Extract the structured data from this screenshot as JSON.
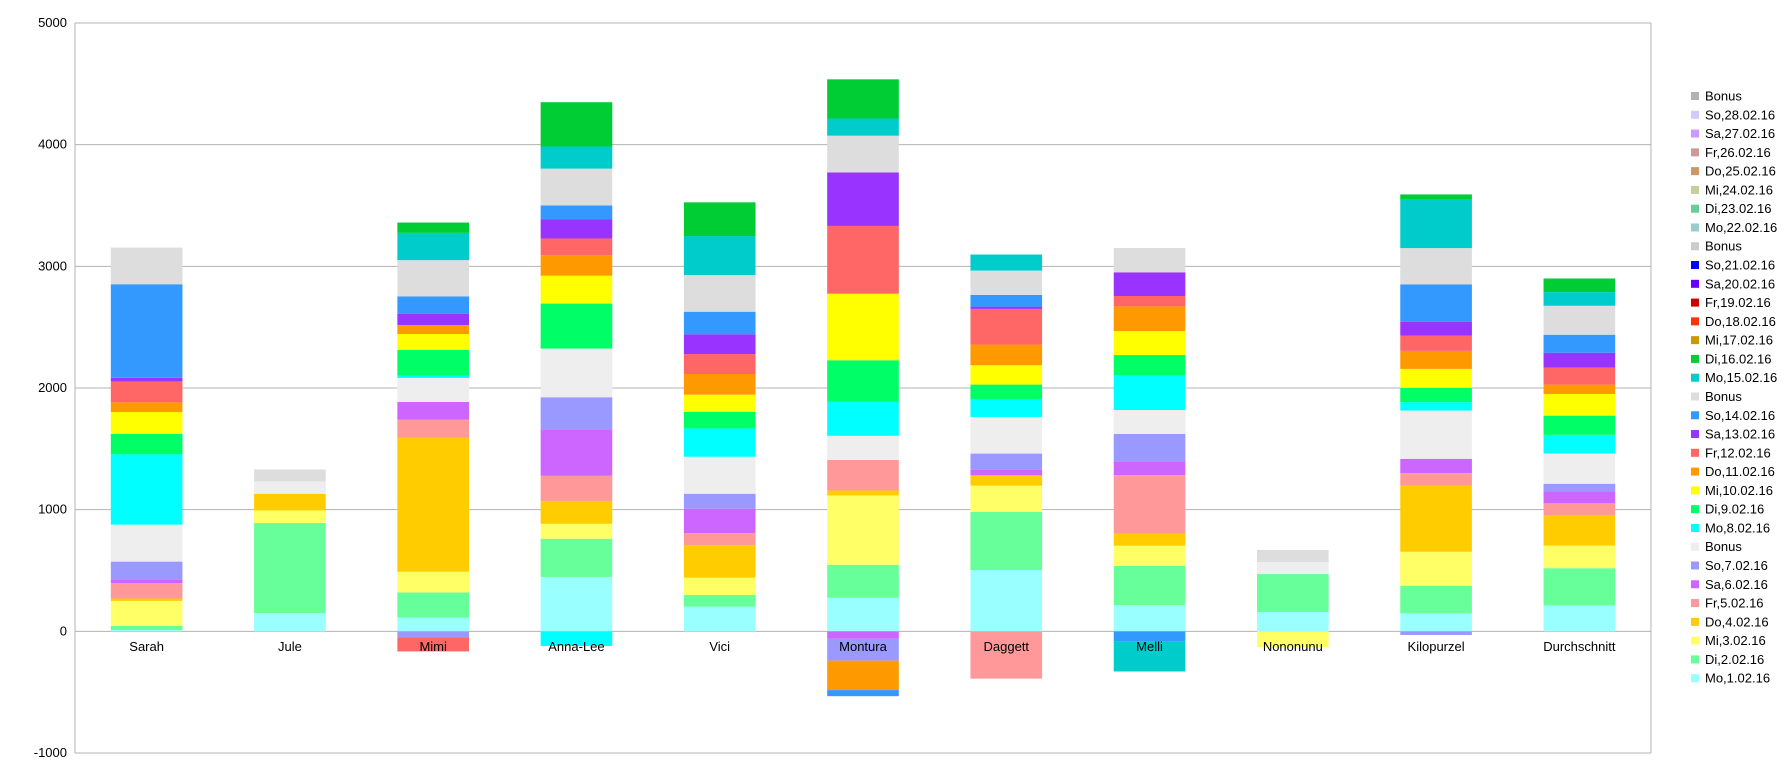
{
  "chart_data": {
    "type": "bar",
    "stacked": true,
    "title": "",
    "xlabel": "",
    "ylabel": "",
    "ylim": [
      -1000,
      5000
    ],
    "yticks": [
      -1000,
      0,
      1000,
      2000,
      3000,
      4000,
      5000
    ],
    "grid": true,
    "legend_position": "right",
    "categories": [
      "Sarah",
      "Jule",
      "Mimi",
      "Anna-Lee",
      "Vici",
      "Montura",
      "Daggett",
      "Melli",
      "Nononunu",
      "Kilopurzel",
      "Durchschnitt"
    ],
    "series": [
      {
        "name": "Mo,1.02.16",
        "color": "#99ffff",
        "values": [
          10,
          150,
          112,
          447,
          203,
          275,
          504,
          216,
          159,
          148,
          213
        ]
      },
      {
        "name": "Di,2.02.16",
        "color": "#66ff99",
        "values": [
          35,
          740,
          208,
          314,
          96,
          272,
          477,
          321,
          312,
          227,
          306
        ]
      },
      {
        "name": "Mi,3.02.16",
        "color": "#ffff66",
        "values": [
          205,
          104,
          170,
          123,
          142,
          570,
          216,
          167,
          -131,
          279,
          186
        ]
      },
      {
        "name": "Do,4.02.16",
        "color": "#ffcc00",
        "values": [
          20,
          137,
          1103,
          185,
          268,
          40,
          85,
          99,
          0,
          545,
          246
        ]
      },
      {
        "name": "Fr,5.02.16",
        "color": "#ff9999",
        "values": [
          125,
          0,
          148,
          209,
          99,
          252,
          -389,
          482,
          0,
          101,
          101
        ]
      },
      {
        "name": "Sa,6.02.16",
        "color": "#cc66ff",
        "values": [
          33,
          0,
          145,
          382,
          200,
          -60,
          47,
          112,
          0,
          118,
          98
        ]
      },
      {
        "name": "So,7.02.16",
        "color": "#9999ff",
        "values": [
          145,
          0,
          -50,
          264,
          123,
          -181,
          132,
          225,
          0,
          -30,
          63
        ]
      },
      {
        "name": "Bonus",
        "color": "#eeeeee",
        "values": [
          304,
          101,
          197,
          400,
          304,
          198,
          301,
          197,
          99,
          397,
          249
        ]
      },
      {
        "name": "Mo,8.02.16",
        "color": "#00ffff",
        "values": [
          578,
          0,
          19,
          -120,
          233,
          282,
          148,
          288,
          0,
          68,
          153
        ]
      },
      {
        "name": "Di,9.02.16",
        "color": "#00ff66",
        "values": [
          167,
          0,
          211,
          370,
          137,
          339,
          118,
          164,
          0,
          118,
          158
        ]
      },
      {
        "name": "Mi,10.02.16",
        "color": "#ffff00",
        "values": [
          181,
          0,
          131,
          229,
          140,
          547,
          159,
          197,
          0,
          156,
          178
        ]
      },
      {
        "name": "Do,11.02.16",
        "color": "#ff9900",
        "values": [
          79,
          0,
          74,
          168,
          170,
          -242,
          170,
          203,
          0,
          148,
          77
        ]
      },
      {
        "name": "Fr,12.02.16",
        "color": "#ff6666",
        "values": [
          172,
          0,
          -115,
          138,
          164,
          557,
          293,
          85,
          0,
          126,
          139
        ]
      },
      {
        "name": "Sa,13.02.16",
        "color": "#9933ff",
        "values": [
          30,
          0,
          93,
          159,
          162,
          440,
          19,
          195,
          0,
          112,
          123
        ]
      },
      {
        "name": "So,14.02.16",
        "color": "#3399ff",
        "values": [
          769,
          0,
          142,
          112,
          186,
          -50,
          96,
          -80,
          0,
          309,
          148
        ]
      },
      {
        "name": "Bonus",
        "color": "#dddddd",
        "values": [
          301,
          98,
          298,
          303,
          301,
          302,
          200,
          200,
          99,
          298,
          238
        ]
      },
      {
        "name": "Mo,15.02.16",
        "color": "#00cccc",
        "values": [
          0,
          0,
          224,
          182,
          321,
          141,
          132,
          -250,
          0,
          397,
          112
        ]
      },
      {
        "name": "Di,16.02.16",
        "color": "#00cc33",
        "values": [
          0,
          0,
          85,
          364,
          277,
          322,
          0,
          0,
          0,
          44,
          112
        ]
      },
      {
        "name": "Mi,17.02.16",
        "color": "#cc9900",
        "values": [
          0,
          0,
          0,
          0,
          0,
          0,
          0,
          0,
          0,
          0,
          0
        ]
      },
      {
        "name": "Do,18.02.16",
        "color": "#ff3300",
        "values": [
          0,
          0,
          0,
          0,
          0,
          0,
          0,
          0,
          0,
          0,
          0
        ]
      },
      {
        "name": "Fr,19.02.16",
        "color": "#cc0000",
        "values": [
          0,
          0,
          0,
          0,
          0,
          0,
          0,
          0,
          0,
          0,
          0
        ]
      },
      {
        "name": "Sa,20.02.16",
        "color": "#6600ff",
        "values": [
          0,
          0,
          0,
          0,
          0,
          0,
          0,
          0,
          0,
          0,
          0
        ]
      },
      {
        "name": "So,21.02.16",
        "color": "#0000ff",
        "values": [
          0,
          0,
          0,
          0,
          0,
          0,
          0,
          0,
          0,
          0,
          0
        ]
      },
      {
        "name": "Bonus",
        "color": "#cccccc",
        "values": [
          0,
          0,
          0,
          0,
          0,
          0,
          0,
          0,
          0,
          0,
          0
        ]
      },
      {
        "name": "Mo,22.02.16",
        "color": "#99cccc",
        "values": [
          0,
          0,
          0,
          0,
          0,
          0,
          0,
          0,
          0,
          0,
          0
        ]
      },
      {
        "name": "Di,23.02.16",
        "color": "#66cc99",
        "values": [
          0,
          0,
          0,
          0,
          0,
          0,
          0,
          0,
          0,
          0,
          0
        ]
      },
      {
        "name": "Mi,24.02.16",
        "color": "#cccc99",
        "values": [
          0,
          0,
          0,
          0,
          0,
          0,
          0,
          0,
          0,
          0,
          0
        ]
      },
      {
        "name": "Do,25.02.16",
        "color": "#cc9966",
        "values": [
          0,
          0,
          0,
          0,
          0,
          0,
          0,
          0,
          0,
          0,
          0
        ]
      },
      {
        "name": "Fr,26.02.16",
        "color": "#cc9999",
        "values": [
          0,
          0,
          0,
          0,
          0,
          0,
          0,
          0,
          0,
          0,
          0
        ]
      },
      {
        "name": "Sa,27.02.16",
        "color": "#cc99ff",
        "values": [
          0,
          0,
          0,
          0,
          0,
          0,
          0,
          0,
          0,
          0,
          0
        ]
      },
      {
        "name": "So,28.02.16",
        "color": "#ccccff",
        "values": [
          0,
          0,
          0,
          0,
          0,
          0,
          0,
          0,
          0,
          0,
          0
        ]
      },
      {
        "name": "Bonus",
        "color": "#b2b2b2",
        "values": [
          0,
          0,
          0,
          0,
          0,
          0,
          0,
          0,
          0,
          0,
          0
        ]
      }
    ]
  }
}
